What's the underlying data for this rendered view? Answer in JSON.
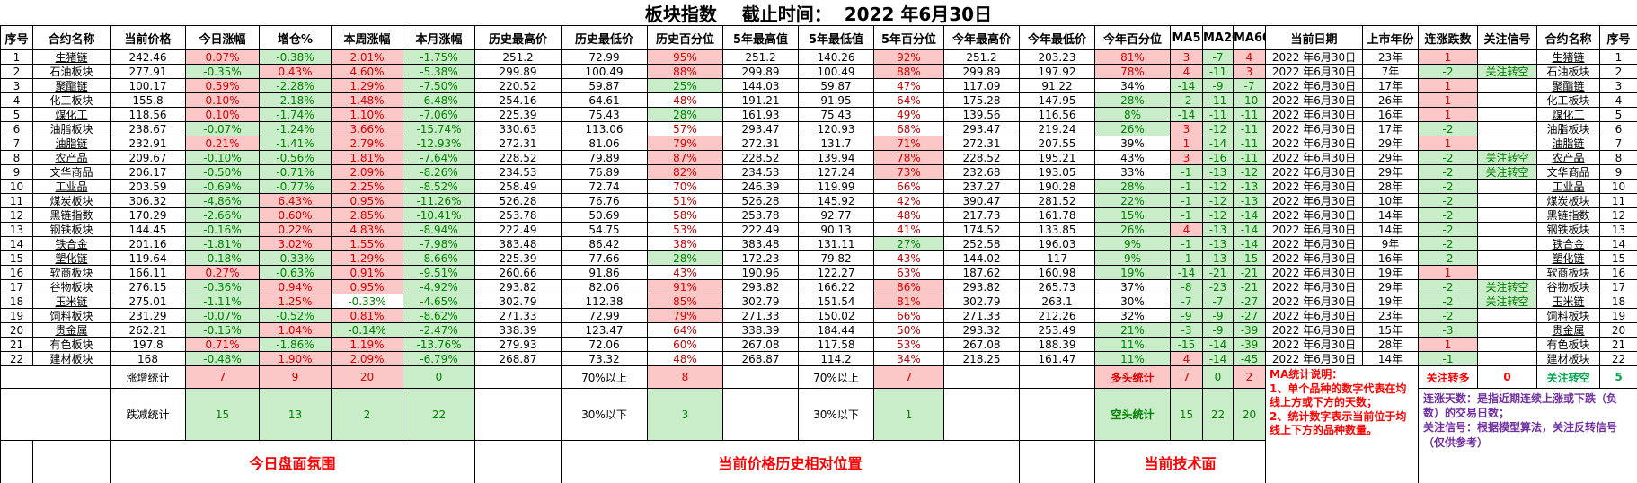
{
  "title": "板块指数    截止时间：  2022 年6月30日",
  "columns": [
    "序号",
    "合约名称",
    "当前价格",
    "今日涨幅",
    "增仓%",
    "本周涨幅",
    "本月涨幅",
    "历史最高价",
    "历史最低价",
    "历史百分位",
    "5年最高值",
    "5年最低值",
    "5年百分位",
    "今年最高价",
    "今年最低价",
    "今年百分位",
    "MA5",
    "MA20",
    "MA60",
    "当前日期",
    "上市年份",
    "连涨跌数",
    "关注信号",
    "合约名称",
    "序号"
  ],
  "rows": [
    [
      "1",
      "生猪链",
      "242.46",
      "0.07%",
      "-0.38%",
      "2.01%",
      "-1.75%",
      "251.2",
      "72.99",
      "95%",
      "251.2",
      "140.26",
      "92%",
      "251.2",
      "203.23",
      "81%",
      "3",
      "-7",
      "4",
      "2022 年6月30日",
      "23年",
      "1",
      "",
      "生猪链",
      "1"
    ],
    [
      "2",
      "石油板块",
      "277.91",
      "-0.35%",
      "0.43%",
      "4.60%",
      "-5.38%",
      "299.89",
      "100.49",
      "88%",
      "299.89",
      "100.49",
      "88%",
      "299.89",
      "197.92",
      "78%",
      "4",
      "-11",
      "3",
      "2022 年6月30日",
      "7年",
      "-2",
      "关注转空",
      "石油板块",
      "2"
    ],
    [
      "3",
      "聚酯链",
      "100.17",
      "0.59%",
      "-2.28%",
      "1.29%",
      "-7.50%",
      "220.52",
      "59.87",
      "25%",
      "144.03",
      "59.87",
      "47%",
      "117.09",
      "91.22",
      "34%",
      "-14",
      "-9",
      "-7",
      "2022 年6月30日",
      "17年",
      "1",
      "",
      "聚酯链",
      "3"
    ],
    [
      "4",
      "化工板块",
      "155.8",
      "0.10%",
      "-2.18%",
      "1.48%",
      "-6.48%",
      "254.16",
      "64.61",
      "48%",
      "191.21",
      "91.95",
      "64%",
      "175.28",
      "147.95",
      "28%",
      "-2",
      "-11",
      "-10",
      "2022 年6月30日",
      "26年",
      "1",
      "",
      "化工板块",
      "4"
    ],
    [
      "5",
      "煤化工",
      "118.56",
      "0.10%",
      "-1.74%",
      "1.10%",
      "-7.06%",
      "225.39",
      "75.43",
      "28%",
      "161.93",
      "75.43",
      "49%",
      "139.56",
      "116.56",
      "8%",
      "-14",
      "-11",
      "-11",
      "2022 年6月30日",
      "16年",
      "1",
      "",
      "煤化工",
      "5"
    ],
    [
      "6",
      "油脂板块",
      "238.67",
      "-0.07%",
      "-1.24%",
      "3.66%",
      "-15.74%",
      "330.63",
      "113.06",
      "57%",
      "293.47",
      "120.93",
      "68%",
      "293.47",
      "219.24",
      "26%",
      "3",
      "-12",
      "-11",
      "2022 年6月30日",
      "17年",
      "-2",
      "",
      "油脂板块",
      "6"
    ],
    [
      "7",
      "油脂链",
      "232.91",
      "0.21%",
      "-1.41%",
      "2.79%",
      "-12.93%",
      "272.31",
      "81.06",
      "79%",
      "272.31",
      "131.7",
      "71%",
      "272.31",
      "207.55",
      "39%",
      "1",
      "-14",
      "-11",
      "2022 年6月30日",
      "29年",
      "1",
      "",
      "油脂链",
      "7"
    ],
    [
      "8",
      "农产品",
      "209.67",
      "-0.10%",
      "-0.56%",
      "1.81%",
      "-7.64%",
      "228.52",
      "79.89",
      "87%",
      "228.52",
      "139.94",
      "78%",
      "228.52",
      "195.21",
      "43%",
      "3",
      "-16",
      "-11",
      "2022 年6月30日",
      "29年",
      "-2",
      "关注转空",
      "农产品",
      "8"
    ],
    [
      "9",
      "文华商品",
      "206.17",
      "-0.50%",
      "-0.71%",
      "2.09%",
      "-8.26%",
      "234.53",
      "76.89",
      "82%",
      "234.53",
      "127.24",
      "73%",
      "232.68",
      "193.05",
      "33%",
      "-1",
      "-13",
      "-12",
      "2022 年6月30日",
      "29年",
      "-2",
      "关注转空",
      "文华商品",
      "9"
    ],
    [
      "10",
      "工业品",
      "203.59",
      "-0.69%",
      "-0.77%",
      "2.25%",
      "-8.52%",
      "258.49",
      "72.74",
      "70%",
      "246.39",
      "119.99",
      "66%",
      "237.27",
      "190.28",
      "28%",
      "-1",
      "-12",
      "-13",
      "2022 年6月30日",
      "28年",
      "-2",
      "",
      "工业品",
      "10"
    ],
    [
      "11",
      "煤炭板块",
      "306.32",
      "-4.86%",
      "6.43%",
      "0.95%",
      "-11.26%",
      "526.28",
      "76.76",
      "51%",
      "526.28",
      "145.92",
      "42%",
      "390.47",
      "281.52",
      "22%",
      "-1",
      "-12",
      "-13",
      "2022 年6月30日",
      "10年",
      "-2",
      "",
      "煤炭板块",
      "11"
    ],
    [
      "12",
      "黑链指数",
      "170.29",
      "-2.66%",
      "0.60%",
      "2.85%",
      "-10.41%",
      "253.78",
      "50.69",
      "58%",
      "253.78",
      "92.77",
      "48%",
      "217.73",
      "161.78",
      "15%",
      "-1",
      "-12",
      "-14",
      "2022 年6月30日",
      "14年",
      "-2",
      "",
      "黑链指数",
      "12"
    ],
    [
      "13",
      "钢铁板块",
      "144.45",
      "-0.16%",
      "0.22%",
      "4.83%",
      "-8.94%",
      "222.49",
      "54.75",
      "53%",
      "222.49",
      "90.13",
      "41%",
      "174.52",
      "133.85",
      "26%",
      "4",
      "-13",
      "-14",
      "2022 年6月30日",
      "14年",
      "-2",
      "",
      "钢铁板块",
      "13"
    ],
    [
      "14",
      "铁合金",
      "201.16",
      "-1.81%",
      "3.02%",
      "1.55%",
      "-7.98%",
      "383.48",
      "86.42",
      "38%",
      "383.48",
      "131.11",
      "27%",
      "252.58",
      "196.03",
      "9%",
      "-1",
      "-13",
      "-14",
      "2022 年6月30日",
      "9年",
      "-2",
      "",
      "铁合金",
      "14"
    ],
    [
      "15",
      "塑化链",
      "119.64",
      "-0.18%",
      "-0.33%",
      "1.29%",
      "-8.66%",
      "225.39",
      "77.66",
      "28%",
      "172.23",
      "79.82",
      "43%",
      "144.02",
      "117",
      "9%",
      "-1",
      "-13",
      "-15",
      "2022 年6月30日",
      "16年",
      "-2",
      "",
      "塑化链",
      "15"
    ],
    [
      "16",
      "软商板块",
      "166.11",
      "0.27%",
      "-0.63%",
      "0.91%",
      "-9.51%",
      "260.66",
      "91.86",
      "43%",
      "190.96",
      "122.27",
      "63%",
      "187.62",
      "160.98",
      "19%",
      "-14",
      "-21",
      "-21",
      "2022 年6月30日",
      "19年",
      "1",
      "",
      "软商板块",
      "16"
    ],
    [
      "17",
      "谷物板块",
      "276.15",
      "-0.36%",
      "0.94%",
      "0.95%",
      "-4.92%",
      "293.82",
      "82.06",
      "91%",
      "293.82",
      "166.22",
      "86%",
      "293.82",
      "265.73",
      "37%",
      "-8",
      "-23",
      "-21",
      "2022 年6月30日",
      "29年",
      "-2",
      "关注转空",
      "谷物板块",
      "17"
    ],
    [
      "18",
      "玉米链",
      "275.01",
      "-1.11%",
      "1.25%",
      "-0.33%",
      "-4.65%",
      "302.79",
      "112.38",
      "85%",
      "302.79",
      "151.54",
      "81%",
      "302.79",
      "263.1",
      "30%",
      "-7",
      "-7",
      "-27",
      "2022 年6月30日",
      "19年",
      "-2",
      "关注转空",
      "玉米链",
      "18"
    ],
    [
      "19",
      "饲料板块",
      "231.29",
      "-0.07%",
      "-0.52%",
      "0.81%",
      "-8.62%",
      "271.33",
      "72.99",
      "79%",
      "271.33",
      "150.02",
      "66%",
      "271.33",
      "212.26",
      "32%",
      "-9",
      "-9",
      "-27",
      "2022 年6月30日",
      "23年",
      "-2",
      "",
      "饲料板块",
      "19"
    ],
    [
      "20",
      "贵金属",
      "262.21",
      "-0.15%",
      "1.04%",
      "-0.14%",
      "-2.47%",
      "338.39",
      "123.47",
      "64%",
      "338.39",
      "184.44",
      "50%",
      "293.32",
      "253.49",
      "21%",
      "-3",
      "-9",
      "-39",
      "2022 年6月30日",
      "15年",
      "-3",
      "",
      "贵金属",
      "20"
    ],
    [
      "21",
      "有色板块",
      "197.8",
      "0.71%",
      "-1.86%",
      "1.19%",
      "-13.76%",
      "279.93",
      "72.06",
      "60%",
      "267.08",
      "117.58",
      "53%",
      "267.08",
      "188.39",
      "11%",
      "-15",
      "-14",
      "-39",
      "2022 年6月30日",
      "28年",
      "1",
      "",
      "有色板块",
      "21"
    ],
    [
      "22",
      "建材板块",
      "168",
      "-0.48%",
      "1.90%",
      "2.09%",
      "-6.79%",
      "268.87",
      "73.32",
      "48%",
      "268.87",
      "114.2",
      "34%",
      "218.25",
      "161.47",
      "11%",
      "4",
      "-14",
      "-45",
      "2022 年6月30日",
      "14年",
      "-1",
      "",
      "建材板块",
      "22"
    ]
  ],
  "style_overrides": [
    {
      "row": 17,
      "col": 5,
      "cls": "flat-down"
    }
  ],
  "summary": {
    "rise_label": "涨增统计",
    "rise_values": [
      "7",
      "9",
      "20",
      "0"
    ],
    "fall_label": "跌减统计",
    "fall_values": [
      "15",
      "13",
      "2",
      "22"
    ],
    "above70_label": "70%以上",
    "below30_label": "30%以下",
    "hist_above70": "8",
    "hist_below30": "3",
    "y5_above70": "7",
    "y5_below30": "1",
    "long_label": "多头统计",
    "long_values": [
      "7",
      "0",
      "2"
    ],
    "short_label": "空头统计",
    "short_values": [
      "15",
      "22",
      "20"
    ],
    "watch_long_label": "关注转多",
    "watch_long_value": "0",
    "watch_short_label": "关注转空",
    "watch_short_value": "5"
  },
  "notes": {
    "ma_title": "MA统计说明：",
    "ma_line1": "1、单个品种的数字代表在均线上方或下方的天数；",
    "ma_line2": "2、统计数字表示当前位于均线上下方的品种数量。",
    "purple_line1": "连涨天数：是指近期连续上涨或下跌（负数）的交易日数；",
    "purple_line2": "关注信号：根据模型算法，关注反转信号（仅供参考）"
  },
  "footers": {
    "left": "今日盘面氛围",
    "mid": "当前价格历史相对位置",
    "right": "当前技术面"
  },
  "colors": {
    "up_bg": "#fbc7c7",
    "up_text": "#dc0000",
    "down_bg": "#c9ecc9",
    "down_text": "#008000",
    "mid_text": "#c00000",
    "note_red": "#ff0000",
    "note_purple": "#7030a0",
    "watch_green": "#00a550"
  }
}
